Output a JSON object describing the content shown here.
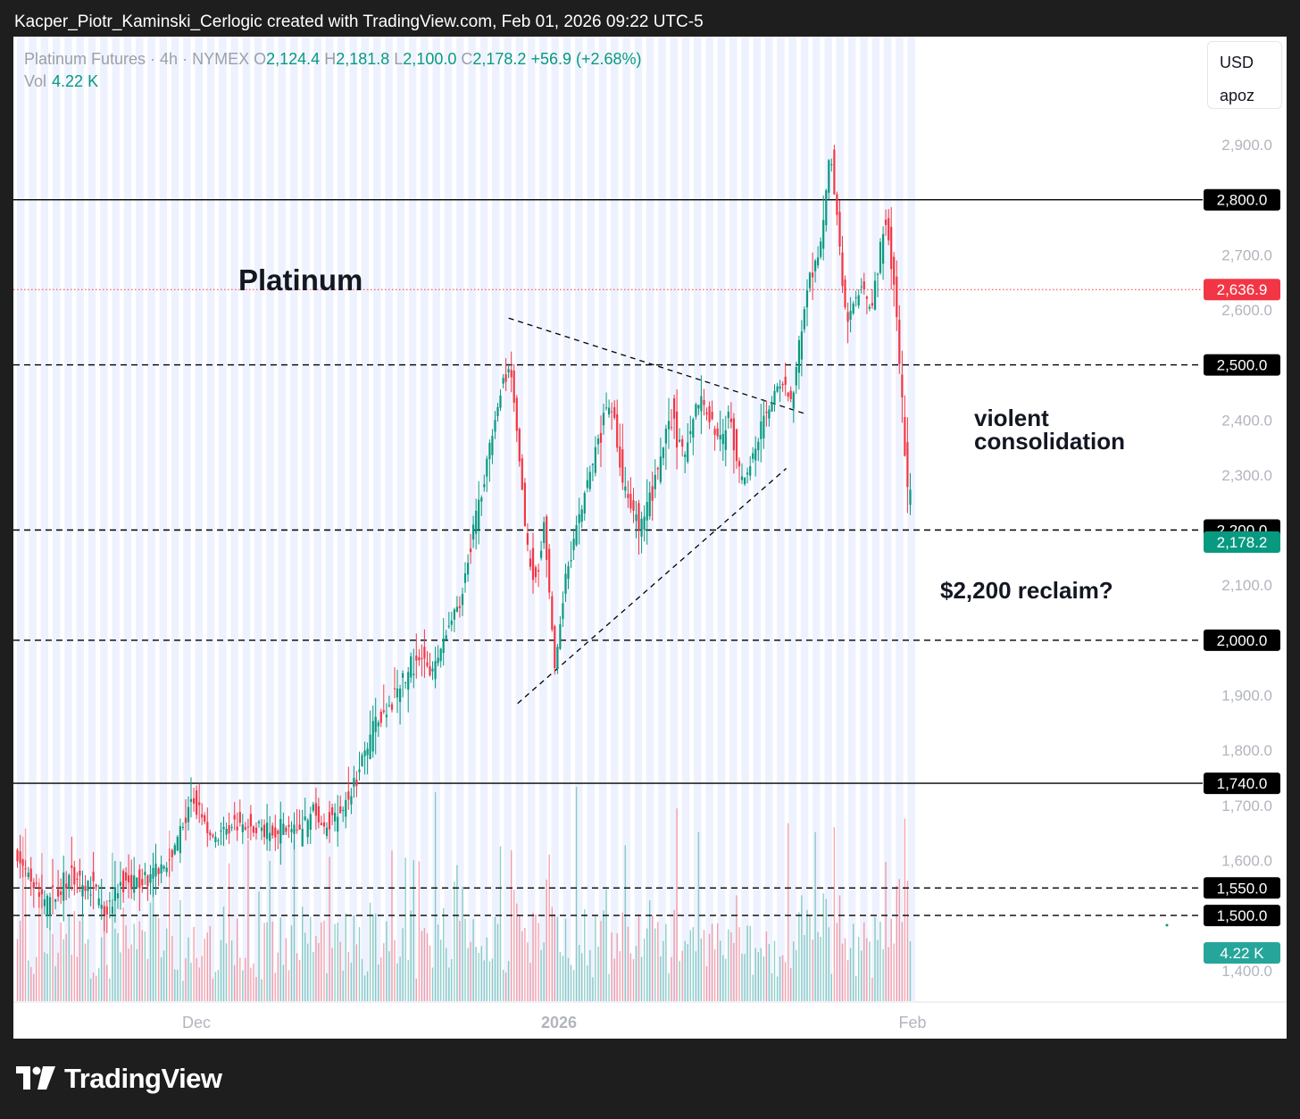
{
  "header": {
    "text": "Kacper_Piotr_Kaminski_Cerlogic created with TradingView.com, Feb 01, 2026 09:22 UTC-5"
  },
  "legend": {
    "symbol": "Platinum Futures · 4h · NYMEX",
    "o_label": "O",
    "o": "2,124.4",
    "h_label": "H",
    "h": "2,181.8",
    "l_label": "L",
    "l": "2,100.0",
    "c_label": "C",
    "c": "2,178.2",
    "change": "+56.9 (+2.68%)",
    "vol_label": "Vol",
    "vol": "4.22 K"
  },
  "top_right": {
    "currency": "USD",
    "mode": "apoz"
  },
  "footer": {
    "brand": "TradingView"
  },
  "colors": {
    "up": "#089981",
    "down": "#f23645",
    "band": "#eef2fe",
    "level_red": "#f23645"
  },
  "icons": {
    "footer_logo": "tradingview-logo-icon"
  },
  "chart_data": {
    "type": "candlestick",
    "interval": "4h",
    "title": "Platinum",
    "x_ticks": [
      "Dec",
      "2026",
      "Feb"
    ],
    "y_ticks": [
      "1,400.0",
      "1,600.0",
      "1,700.0",
      "1,800.0",
      "1,900.0",
      "2,100.0",
      "2,300.0",
      "2,400.0",
      "2,600.0",
      "2,700.0",
      "2,900.0"
    ],
    "ylim": [
      1380,
      2960
    ],
    "levels": [
      {
        "value": 2800,
        "label": "2,800.0",
        "style": "solid"
      },
      {
        "value": 2636.9,
        "label": "2,636.9",
        "style": "dotted-red"
      },
      {
        "value": 2500,
        "label": "2,500.0",
        "style": "dashed"
      },
      {
        "value": 2200,
        "label": "2,200.0",
        "style": "dashed"
      },
      {
        "value": 2000,
        "label": "2,000.0",
        "style": "dashed"
      },
      {
        "value": 1740,
        "label": "1,740.0",
        "style": "solid"
      },
      {
        "value": 1550,
        "label": "1,550.0",
        "style": "dashed"
      },
      {
        "value": 1500,
        "label": "1,500.0",
        "style": "dashed"
      }
    ],
    "last_price": {
      "value": 2178.2,
      "label": "2,178.2"
    },
    "volume_badge": "4.22 K",
    "annotations": [
      {
        "text": "violent"
      },
      {
        "text": "consolidation"
      },
      {
        "text": "$2,200 reclaim?"
      }
    ],
    "trendlines": [
      {
        "from": {
          "t": 0.55,
          "p": 2585
        },
        "to": {
          "t": 0.88,
          "p": 2412
        }
      },
      {
        "from": {
          "t": 0.56,
          "p": 1885
        },
        "to": {
          "t": 0.86,
          "p": 2312
        }
      }
    ],
    "path": [
      [
        0,
        1610
      ],
      [
        0.02,
        1555
      ],
      [
        0.036,
        1520
      ],
      [
        0.06,
        1565
      ],
      [
        0.085,
        1550
      ],
      [
        0.1,
        1515
      ],
      [
        0.12,
        1548
      ],
      [
        0.15,
        1570
      ],
      [
        0.17,
        1592
      ],
      [
        0.185,
        1650
      ],
      [
        0.2,
        1712
      ],
      [
        0.215,
        1658
      ],
      [
        0.225,
        1640
      ],
      [
        0.25,
        1668
      ],
      [
        0.27,
        1652
      ],
      [
        0.3,
        1660
      ],
      [
        0.32,
        1648
      ],
      [
        0.335,
        1700
      ],
      [
        0.345,
        1655
      ],
      [
        0.37,
        1700
      ],
      [
        0.385,
        1760
      ],
      [
        0.4,
        1835
      ],
      [
        0.42,
        1875
      ],
      [
        0.435,
        1930
      ],
      [
        0.45,
        1970
      ],
      [
        0.47,
        1945
      ],
      [
        0.48,
        2000
      ],
      [
        0.5,
        2080
      ],
      [
        0.515,
        2210
      ],
      [
        0.53,
        2330
      ],
      [
        0.545,
        2450
      ],
      [
        0.555,
        2515
      ],
      [
        0.563,
        2370
      ],
      [
        0.575,
        2150
      ],
      [
        0.585,
        2105
      ],
      [
        0.593,
        2215
      ],
      [
        0.605,
        1950
      ],
      [
        0.617,
        2120
      ],
      [
        0.635,
        2240
      ],
      [
        0.65,
        2340
      ],
      [
        0.668,
        2440
      ],
      [
        0.68,
        2290
      ],
      [
        0.7,
        2200
      ],
      [
        0.715,
        2275
      ],
      [
        0.735,
        2405
      ],
      [
        0.75,
        2330
      ],
      [
        0.768,
        2445
      ],
      [
        0.79,
        2350
      ],
      [
        0.8,
        2410
      ],
      [
        0.815,
        2280
      ],
      [
        0.835,
        2375
      ],
      [
        0.855,
        2470
      ],
      [
        0.87,
        2440
      ],
      [
        0.89,
        2660
      ],
      [
        0.905,
        2730
      ],
      [
        0.913,
        2900
      ],
      [
        0.922,
        2750
      ],
      [
        0.932,
        2570
      ],
      [
        0.945,
        2640
      ],
      [
        0.96,
        2600
      ],
      [
        0.975,
        2770
      ],
      [
        0.985,
        2650
      ],
      [
        0.993,
        2450
      ],
      [
        1.0,
        2270
      ],
      [
        1.005,
        2120
      ],
      [
        1.01,
        2190
      ]
    ]
  }
}
